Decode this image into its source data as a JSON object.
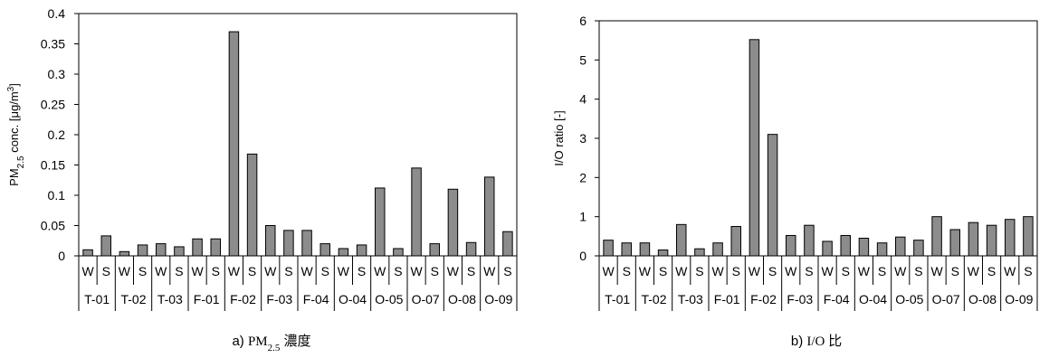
{
  "chart_data": [
    {
      "type": "bar",
      "caption_prefix": "a) ",
      "caption_main": "PM",
      "caption_sub": "2.5",
      "caption_suffix": " 濃度",
      "ylabel_main": "PM",
      "ylabel_sub": "2.5",
      "ylabel_mid": " conc. [μg/m",
      "ylabel_sup": "3",
      "ylabel_end": "]",
      "ylim": [
        0,
        0.4
      ],
      "yticks": [
        "0",
        "0.05",
        "0.1",
        "0.15",
        "0.2",
        "0.25",
        "0.3",
        "0.35",
        "0.4"
      ],
      "groups": [
        "T-01",
        "T-02",
        "T-03",
        "F-01",
        "F-02",
        "F-03",
        "F-04",
        "O-04",
        "O-05",
        "O-07",
        "O-08",
        "O-09"
      ],
      "seasons": [
        "W",
        "S"
      ],
      "values": [
        0.01,
        0.033,
        0.007,
        0.018,
        0.02,
        0.015,
        0.028,
        0.028,
        0.37,
        0.168,
        0.05,
        0.042,
        0.042,
        0.02,
        0.012,
        0.018,
        0.112,
        0.012,
        0.145,
        0.02,
        0.11,
        0.022,
        0.13,
        0.04
      ],
      "bar_color": "#8c8c8c",
      "grid": false
    },
    {
      "type": "bar",
      "caption_prefix": "b) ",
      "caption_main": "I/O 比",
      "caption_sub": "",
      "caption_suffix": "",
      "ylabel_main": "I/O ratio [-]",
      "ylabel_sub": "",
      "ylabel_mid": "",
      "ylabel_sup": "",
      "ylabel_end": "",
      "ylim": [
        0,
        6
      ],
      "yticks": [
        "0",
        "1",
        "2",
        "3",
        "4",
        "5",
        "6"
      ],
      "groups": [
        "T-01",
        "T-02",
        "T-03",
        "F-01",
        "F-02",
        "F-03",
        "F-04",
        "O-04",
        "O-05",
        "O-07",
        "O-08",
        "O-09"
      ],
      "seasons": [
        "W",
        "S"
      ],
      "values": [
        0.4,
        0.33,
        0.33,
        0.15,
        0.8,
        0.18,
        0.33,
        0.75,
        5.52,
        3.1,
        0.52,
        0.78,
        0.37,
        0.52,
        0.45,
        0.33,
        0.48,
        0.4,
        1.0,
        0.67,
        0.85,
        0.78,
        0.93,
        1.0
      ],
      "bar_color": "#8c8c8c",
      "grid": false
    }
  ]
}
